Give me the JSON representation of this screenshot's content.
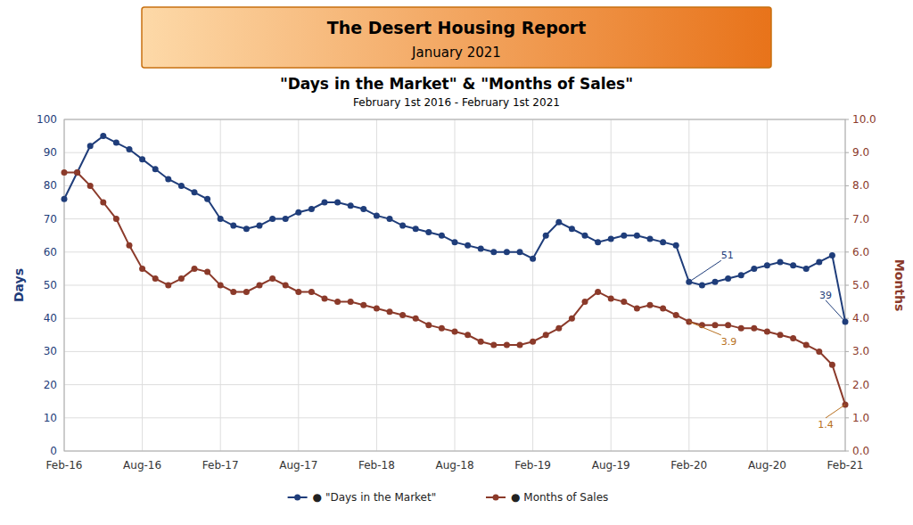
{
  "chart_data": {
    "type": "line",
    "header_title": "The Desert Housing Report",
    "header_subtitle": "January 2021",
    "title": "\"Days in the Market\" & \"Months of Sales\"",
    "subtitle": "February 1st 2016 - February 1st 2021",
    "categories": [
      "Feb-16",
      null,
      null,
      null,
      null,
      null,
      "Aug-16",
      null,
      null,
      null,
      null,
      null,
      "Feb-17",
      null,
      null,
      null,
      null,
      null,
      "Aug-17",
      null,
      null,
      null,
      null,
      null,
      "Feb-18",
      null,
      null,
      null,
      null,
      null,
      "Aug-18",
      null,
      null,
      null,
      null,
      null,
      "Feb-19",
      null,
      null,
      null,
      null,
      null,
      "Aug-19",
      null,
      null,
      null,
      null,
      null,
      "Feb-20",
      null,
      null,
      null,
      null,
      null,
      "Aug-20",
      null,
      null,
      null,
      null,
      null,
      "Feb-21"
    ],
    "series": [
      {
        "name": "● \"Days in the Market\"",
        "color": "#1f3d7a",
        "marker": "circle",
        "line_style": "solid",
        "values": [
          76,
          84,
          92,
          95,
          93,
          91,
          88,
          85,
          82,
          80,
          78,
          76,
          70,
          68,
          67,
          68,
          70,
          70,
          72,
          73,
          75,
          75,
          74,
          73,
          71,
          70,
          68,
          67,
          66,
          65,
          63,
          62,
          61,
          60,
          60,
          60,
          58,
          65,
          69,
          67,
          65,
          63,
          64,
          65,
          65,
          64,
          63,
          62,
          51,
          50,
          51,
          52,
          53,
          55,
          56,
          57,
          56,
          55,
          57,
          59,
          39
        ]
      },
      {
        "name": "● Months of Sales",
        "color": "#8b3a2a",
        "marker": "circle",
        "line_style": "solid",
        "axis": "y2",
        "values": [
          8.4,
          8.4,
          8.0,
          7.5,
          7.0,
          6.2,
          5.5,
          5.2,
          5.0,
          5.2,
          5.5,
          5.4,
          5.0,
          4.8,
          4.8,
          5.0,
          5.2,
          5.0,
          4.8,
          4.8,
          4.6,
          4.5,
          4.5,
          4.4,
          4.3,
          4.2,
          4.1,
          4.0,
          3.8,
          3.7,
          3.6,
          3.5,
          3.3,
          3.2,
          3.2,
          3.2,
          3.3,
          3.5,
          3.7,
          4.0,
          4.5,
          4.8,
          4.6,
          4.5,
          4.3,
          4.4,
          4.3,
          4.1,
          3.9,
          3.8,
          3.8,
          3.8,
          3.7,
          3.7,
          3.6,
          3.5,
          3.4,
          3.2,
          3.0,
          2.6,
          1.4
        ]
      }
    ],
    "ylabel": "Days",
    "y2label": "Months",
    "ylim": [
      0,
      100
    ],
    "yticks": [
      0,
      10,
      20,
      30,
      40,
      50,
      60,
      70,
      80,
      90,
      100
    ],
    "y2lim": [
      0,
      10
    ],
    "y2ticks": [
      {
        "value": 0,
        "label": "0.0"
      },
      {
        "value": 1,
        "label": "1.0"
      },
      {
        "value": 2,
        "label": "2.0"
      },
      {
        "value": 3,
        "label": "3.0"
      },
      {
        "value": 4,
        "label": "4.0"
      },
      {
        "value": 5,
        "label": "5.0"
      },
      {
        "value": 6,
        "label": "6.0"
      },
      {
        "value": 7,
        "label": "7.0"
      },
      {
        "value": 8,
        "label": "8.0"
      },
      {
        "value": 9,
        "label": "9.0"
      },
      {
        "value": 10,
        "label": "10.0"
      }
    ],
    "grid": true,
    "legend": "bottom",
    "annotations": [
      {
        "text": "51",
        "x": 48,
        "y": 51,
        "color": "#1f3d7a"
      },
      {
        "text": "3.9",
        "x": 48,
        "y": 3.9,
        "axis": "y2",
        "color": "#b87020"
      },
      {
        "text": "39",
        "x": 60,
        "y": 39,
        "color": "#1f3d7a"
      },
      {
        "text": "1.4",
        "x": 60,
        "y": 1.4,
        "axis": "y2",
        "color": "#b87020"
      }
    ]
  }
}
